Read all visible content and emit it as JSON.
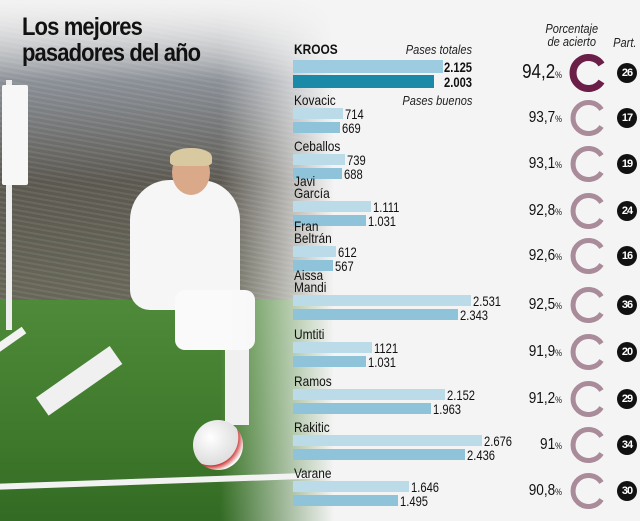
{
  "title": {
    "line1": "Los mejores",
    "line2": "pasadores del año"
  },
  "headers": {
    "total": "Pases totales",
    "good": "Pases buenos",
    "percentage_line1": "Porcentaje",
    "percentage_line2": "de acierto",
    "matches": "Part.",
    "percent_sign": "%"
  },
  "colors": {
    "bar_total": "#bcdbe8",
    "bar_good": "#8fc3da",
    "kroos_total": "#9dcbe0",
    "kroos_good": "#1a8aa8",
    "ring_highlight": "#6b1f48",
    "ring": "#a98b9a",
    "badge": "#111111"
  },
  "chart_data": {
    "type": "bar",
    "title": "Los mejores pasadores del año",
    "series": [
      {
        "name": "Pases totales"
      },
      {
        "name": "Pases buenos"
      }
    ],
    "rows": [
      {
        "player": "KROOS",
        "total": "2.125",
        "good": "2.003",
        "total_value": 2125,
        "good_value": 2003,
        "percentage": "94,2",
        "matches": "26",
        "highlight": true
      },
      {
        "player": "Kovacic",
        "total": "714",
        "good": "669",
        "total_value": 714,
        "good_value": 669,
        "percentage": "93,7",
        "matches": "17"
      },
      {
        "player": "Ceballos",
        "total": "739",
        "good": "688",
        "total_value": 739,
        "good_value": 688,
        "percentage": "93,1",
        "matches": "19"
      },
      {
        "player": "Javi\nGarcía",
        "total": "1.111",
        "good": "1.031",
        "total_value": 1111,
        "good_value": 1031,
        "percentage": "92,8",
        "matches": "24"
      },
      {
        "player": "Fran\nBeltrán",
        "total": "612",
        "good": "567",
        "total_value": 612,
        "good_value": 567,
        "percentage": "92,6",
        "matches": "16"
      },
      {
        "player": "Aissa\nMandi",
        "total": "2.531",
        "good": "2.343",
        "total_value": 2531,
        "good_value": 2343,
        "percentage": "92,5",
        "matches": "36"
      },
      {
        "player": "Umtiti",
        "total": "1121",
        "good": "1.031",
        "total_value": 1121,
        "good_value": 1031,
        "percentage": "91,9",
        "matches": "20"
      },
      {
        "player": "Ramos",
        "total": "2.152",
        "good": "1.963",
        "total_value": 2152,
        "good_value": 1963,
        "percentage": "91,2",
        "matches": "29"
      },
      {
        "player": "Rakitic",
        "total": "2.676",
        "good": "2.436",
        "total_value": 2676,
        "good_value": 2436,
        "percentage": "91",
        "matches": "34"
      },
      {
        "player": "Varane",
        "total": "1.646",
        "good": "1.495",
        "total_value": 1646,
        "good_value": 1495,
        "percentage": "90,8",
        "matches": "30"
      }
    ]
  }
}
